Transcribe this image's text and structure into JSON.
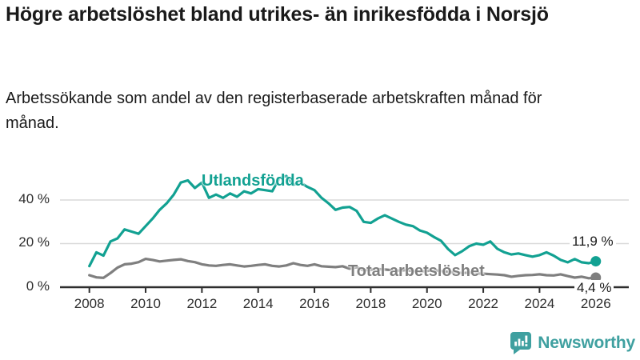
{
  "header": {
    "title": "Högre arbetslöshet bland utrikes- än inrikesfödda i Norsjö",
    "subtitle": "Arbetssökande som andel av den registerbaserade arbetskraften månad för månad."
  },
  "chart_data": {
    "type": "line",
    "title": "Högre arbetslöshet bland utrikes- än inrikesfödda i Norsjö",
    "unit": "%",
    "xlabel": "",
    "ylabel": "",
    "xlim": [
      2008,
      2026.3
    ],
    "ylim": [
      0,
      55
    ],
    "grid": "horizontal-only",
    "legend_position": "inline-labels",
    "y_ticks": [
      {
        "label": "0 %",
        "value": 0
      },
      {
        "label": "20 %",
        "value": 20
      },
      {
        "label": "40 %",
        "value": 40
      }
    ],
    "x_tick_labels": [
      "2008",
      "2010",
      "2012",
      "2014",
      "2016",
      "2018",
      "2020",
      "2022",
      "2024",
      "2026"
    ],
    "x_tick_values": [
      2008,
      2010,
      2012,
      2014,
      2016,
      2018,
      2020,
      2022,
      2024,
      2026
    ],
    "x": [
      2008,
      2008.25,
      2008.5,
      2008.75,
      2009,
      2009.25,
      2009.5,
      2009.75,
      2010,
      2010.25,
      2010.5,
      2010.75,
      2011,
      2011.25,
      2011.5,
      2011.75,
      2012,
      2012.25,
      2012.5,
      2012.75,
      2013,
      2013.25,
      2013.5,
      2013.75,
      2014,
      2014.25,
      2014.5,
      2014.75,
      2015,
      2015.25,
      2015.5,
      2015.75,
      2016,
      2016.25,
      2016.5,
      2016.75,
      2017,
      2017.25,
      2017.5,
      2017.75,
      2018,
      2018.25,
      2018.5,
      2018.75,
      2019,
      2019.25,
      2019.5,
      2019.75,
      2020,
      2020.25,
      2020.5,
      2020.75,
      2021,
      2021.25,
      2021.5,
      2021.75,
      2022,
      2022.25,
      2022.5,
      2022.75,
      2023,
      2023.25,
      2023.5,
      2023.75,
      2024,
      2024.25,
      2024.5,
      2024.75,
      2025,
      2025.25,
      2025.5,
      2025.75,
      2026
    ],
    "series": [
      {
        "name": "Total arbetslöshet",
        "color": "#7f7f7f",
        "end_label": "4,4 %",
        "end_value": 4.4,
        "values": [
          5.5,
          4.5,
          4.3,
          6.5,
          9,
          10.5,
          10.8,
          11.5,
          13,
          12.5,
          11.8,
          12.2,
          12.5,
          12.8,
          12,
          11.5,
          10.5,
          10,
          9.8,
          10.2,
          10.5,
          10,
          9.5,
          9.8,
          10.2,
          10.5,
          9.8,
          9.5,
          10,
          11,
          10.2,
          9.8,
          10.5,
          9.6,
          9.4,
          9.2,
          9.6,
          8.5,
          9.2,
          7.7,
          8,
          8.3,
          8.1,
          7.8,
          7.6,
          7.8,
          7.4,
          7.2,
          7.5,
          7.8,
          7.4,
          7,
          6.8,
          6.5,
          6.7,
          6.4,
          6.2,
          6,
          5.8,
          5.5,
          4.8,
          5.2,
          5.5,
          5.6,
          5.9,
          5.5,
          5.4,
          5.9,
          5.1,
          4.4,
          4.8,
          4.1,
          4.4
        ]
      },
      {
        "name": "Utlandsfödda",
        "color": "#12a192",
        "end_label": "11,9 %",
        "end_value": 11.9,
        "values": [
          9.7,
          16,
          14.5,
          21,
          22.4,
          26.5,
          25.5,
          24.5,
          28,
          31.5,
          35.5,
          38.5,
          42.5,
          48,
          49,
          45.5,
          48,
          41,
          42.5,
          41,
          43,
          41.5,
          44,
          43,
          45,
          44.5,
          44,
          50,
          51,
          47,
          48,
          46,
          44.5,
          41,
          38.5,
          35.5,
          36.5,
          36.8,
          35,
          30,
          29.5,
          31.5,
          33,
          31.5,
          30,
          28.7,
          28,
          26,
          25,
          23,
          21.3,
          17.5,
          14.7,
          16.5,
          18.8,
          20,
          19.5,
          21,
          17.6,
          16,
          15,
          15.5,
          14.7,
          14,
          14.7,
          16,
          14.5,
          12.5,
          11.4,
          12.9,
          11.4,
          11,
          11.9
        ]
      }
    ]
  },
  "branding": {
    "logo_text": "Newsworthy",
    "logo_color": "#3fa0a0",
    "logo_icon": "bar-chart-speech-bubble-icon"
  }
}
